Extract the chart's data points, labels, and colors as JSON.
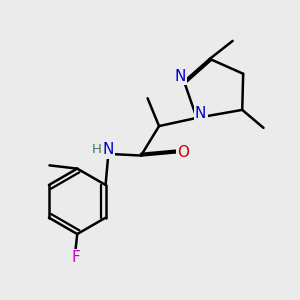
{
  "background_color": "#ebebeb",
  "atom_colors": {
    "N": "#0000cc",
    "O": "#cc0000",
    "F": "#cc00cc",
    "H": "#3a7a5a",
    "C": "#000000"
  },
  "bond_color": "#000000",
  "bond_width": 1.8,
  "figsize": [
    3.0,
    3.0
  ],
  "dpi": 100
}
